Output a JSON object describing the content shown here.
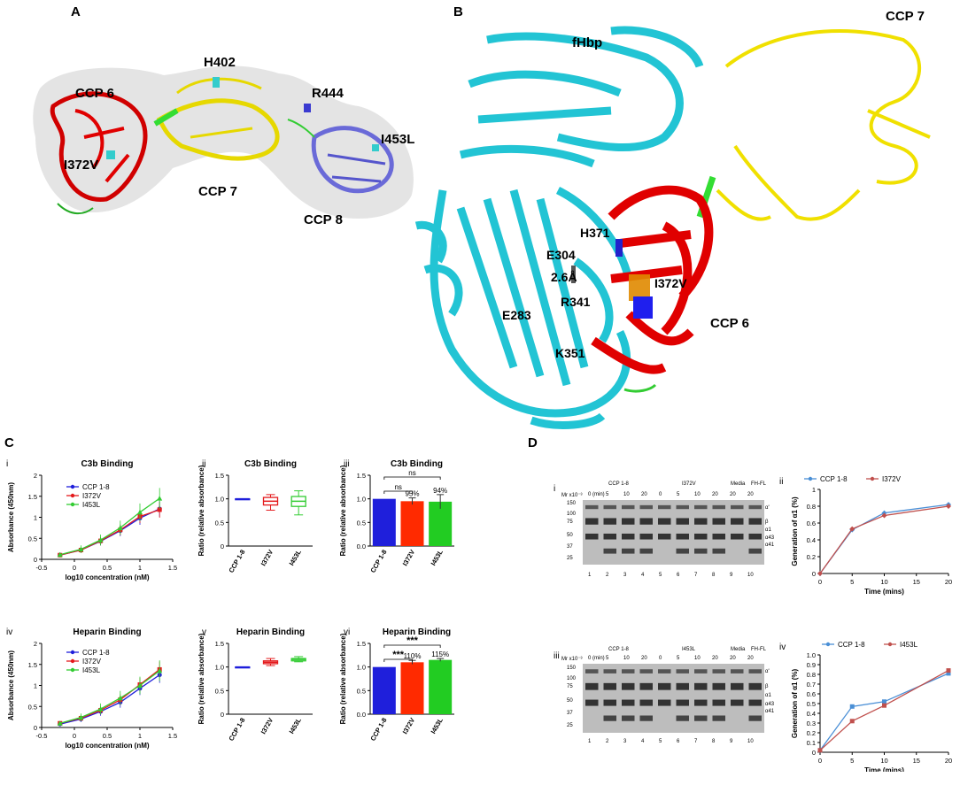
{
  "panels": {
    "A": {
      "letter": "A",
      "labels": {
        "ccp6": "CCP 6",
        "ccp7": "CCP 7",
        "ccp8": "CCP 8",
        "h402": "H402",
        "r444": "R444",
        "i453l": "I453L",
        "i372v": "I372V"
      }
    },
    "B": {
      "letter": "B",
      "labels": {
        "fhbp": "fHbp",
        "ccp7": "CCP 7",
        "ccp6": "CCP 6",
        "h371": "H371",
        "e304": "E304",
        "dist": "2.6Å",
        "i372v": "I372V",
        "r341": "R341",
        "e283": "E283",
        "k351": "K351"
      }
    },
    "C": {
      "letter": "C"
    },
    "D": {
      "letter": "D"
    }
  },
  "chart_data": [
    {
      "id": "C-i",
      "roman": "i",
      "type": "line",
      "title": "C3b Binding",
      "xlabel": "log10 concentration (nM)",
      "ylabel": "Absorbance (450nm)",
      "xlim": [
        -0.5,
        1.5
      ],
      "ylim": [
        0,
        2
      ],
      "xticks": [
        "-0.5",
        "0",
        "0.5",
        "1",
        "1.5"
      ],
      "yticks": [
        "0",
        "0.5",
        "1",
        "1.5",
        "2"
      ],
      "legend": [
        "CCP 1-8",
        "I372V",
        "I453L"
      ],
      "x": [
        -0.22,
        0.1,
        0.4,
        0.7,
        1.0,
        1.3
      ],
      "series": [
        {
          "name": "CCP 1-8",
          "color": "#1f1fdb",
          "values": [
            0.1,
            0.22,
            0.43,
            0.68,
            0.98,
            1.2
          ]
        },
        {
          "name": "I372V",
          "color": "#e41a1c",
          "values": [
            0.1,
            0.22,
            0.44,
            0.7,
            1.02,
            1.18
          ]
        },
        {
          "name": "I453L",
          "color": "#33cc33",
          "values": [
            0.11,
            0.24,
            0.46,
            0.75,
            1.12,
            1.45
          ]
        }
      ]
    },
    {
      "id": "C-ii",
      "roman": "ii",
      "type": "box",
      "title": "C3b Binding",
      "ylabel": "Ratio (relative absorbance)",
      "ylim": [
        0,
        1.5
      ],
      "yticks": [
        "0",
        "0.5",
        "1.0",
        "1.5"
      ],
      "categories": [
        "CCP 1-8",
        "I372V",
        "I453L"
      ],
      "boxes": [
        {
          "min": 1,
          "q1": 1,
          "med": 1,
          "q3": 1,
          "max": 1,
          "color": "#1f1fdb"
        },
        {
          "min": 0.76,
          "q1": 0.87,
          "med": 0.95,
          "q3": 1.03,
          "max": 1.09,
          "color": "#e41a1c"
        },
        {
          "min": 0.66,
          "q1": 0.84,
          "med": 0.95,
          "q3": 1.05,
          "max": 1.17,
          "color": "#33cc33"
        }
      ]
    },
    {
      "id": "C-iii",
      "roman": "iii",
      "type": "bar",
      "title": "C3b Binding",
      "ylabel": "Ratio (relative absorbance)",
      "ylim": [
        0,
        1.5
      ],
      "yticks": [
        "0.0",
        "0.5",
        "1.0",
        "1.5"
      ],
      "categories": [
        "CCP 1-8",
        "I372V",
        "I453L"
      ],
      "values": [
        1.0,
        0.95,
        0.94
      ],
      "errors": [
        0,
        0.07,
        0.15
      ],
      "colors": [
        "#1f1fdb",
        "#ff2a00",
        "#22cc22"
      ],
      "annotations": [
        "",
        "95%",
        "94%"
      ],
      "sig": [
        "ns",
        "ns"
      ]
    },
    {
      "id": "C-iv",
      "roman": "iv",
      "type": "line",
      "title": "Heparin Binding",
      "xlabel": "log10 concentration (nM)",
      "ylabel": "Absorbance (450nm)",
      "xlim": [
        -0.5,
        1.5
      ],
      "ylim": [
        0,
        2
      ],
      "xticks": [
        "-0.5",
        "0",
        "0.5",
        "1",
        "1.5"
      ],
      "yticks": [
        "0",
        "0.5",
        "1",
        "1.5",
        "2"
      ],
      "legend": [
        "CCP 1-8",
        "I372V",
        "I453L"
      ],
      "x": [
        -0.22,
        0.1,
        0.4,
        0.7,
        1.0,
        1.3
      ],
      "series": [
        {
          "name": "CCP 1-8",
          "color": "#1f1fdb",
          "values": [
            0.08,
            0.2,
            0.38,
            0.6,
            0.93,
            1.25
          ]
        },
        {
          "name": "I372V",
          "color": "#e41a1c",
          "values": [
            0.1,
            0.22,
            0.41,
            0.66,
            1.02,
            1.38
          ]
        },
        {
          "name": "I453L",
          "color": "#33cc33",
          "values": [
            0.1,
            0.24,
            0.44,
            0.7,
            1.0,
            1.35
          ]
        }
      ]
    },
    {
      "id": "C-v",
      "roman": "v",
      "type": "box",
      "title": "Heparin Binding",
      "ylabel": "Ratio (relative absorbance)",
      "ylim": [
        0,
        1.5
      ],
      "yticks": [
        "0",
        "0.5",
        "1.0",
        "1.5"
      ],
      "categories": [
        "CCP 1-8",
        "I372V",
        "I453L"
      ],
      "boxes": [
        {
          "min": 1,
          "q1": 1,
          "med": 1,
          "q3": 1,
          "max": 1,
          "color": "#1f1fdb"
        },
        {
          "min": 1.03,
          "q1": 1.07,
          "med": 1.1,
          "q3": 1.13,
          "max": 1.18,
          "color": "#e41a1c"
        },
        {
          "min": 1.11,
          "q1": 1.13,
          "med": 1.16,
          "q3": 1.18,
          "max": 1.22,
          "color": "#33cc33"
        }
      ]
    },
    {
      "id": "C-vi",
      "roman": "vi",
      "type": "bar",
      "title": "Heparin Binding",
      "ylabel": "Ratio (relative absorbance)",
      "ylim": [
        0,
        1.5
      ],
      "yticks": [
        "0.0",
        "0.5",
        "1.0",
        "1.5"
      ],
      "categories": [
        "CCP 1-8",
        "I372V",
        "I453L"
      ],
      "values": [
        1.0,
        1.1,
        1.15
      ],
      "errors": [
        0,
        0.04,
        0.03
      ],
      "colors": [
        "#1f1fdb",
        "#ff2a00",
        "#22cc22"
      ],
      "annotations": [
        "",
        "110%",
        "115%"
      ],
      "sig": [
        "***",
        "***"
      ]
    },
    {
      "id": "D-ii",
      "roman": "ii",
      "type": "line",
      "title": "",
      "xlabel": "Time (mins)",
      "ylabel": "Generation of α1 (%)",
      "xlim": [
        0,
        20
      ],
      "ylim": [
        0,
        1
      ],
      "xticks": [
        "0",
        "5",
        "10",
        "15",
        "20"
      ],
      "yticks": [
        "0",
        "0.2",
        "0.4",
        "0.6",
        "0.8",
        "1"
      ],
      "legend": [
        "CCP 1-8",
        "I372V"
      ],
      "x": [
        0,
        5,
        10,
        20
      ],
      "series": [
        {
          "name": "CCP 1-8",
          "color": "#4a8fd6",
          "values": [
            0,
            0.52,
            0.72,
            0.82
          ]
        },
        {
          "name": "I372V",
          "color": "#c0504d",
          "values": [
            0,
            0.53,
            0.69,
            0.8
          ]
        }
      ]
    },
    {
      "id": "D-iv",
      "roman": "iv",
      "type": "line",
      "title": "",
      "xlabel": "Time (mins)",
      "ylabel": "Generation of α1 (%)",
      "xlim": [
        0,
        20
      ],
      "ylim": [
        0,
        1
      ],
      "xticks": [
        "0",
        "5",
        "10",
        "15",
        "20"
      ],
      "yticks": [
        "0",
        "0.1",
        "0.2",
        "0.3",
        "0.4",
        "0.5",
        "0.6",
        "0.7",
        "0.8",
        "0.9",
        "1.0"
      ],
      "legend": [
        "CCP 1-8",
        "I453L"
      ],
      "x": [
        0,
        5,
        10,
        20
      ],
      "series": [
        {
          "name": "CCP 1-8",
          "color": "#4a8fd6",
          "values": [
            0.02,
            0.47,
            0.52,
            0.81
          ]
        },
        {
          "name": "I453L",
          "color": "#c0504d",
          "values": [
            0.02,
            0.32,
            0.48,
            0.84
          ]
        }
      ]
    }
  ],
  "gels": {
    "i": {
      "roman": "i",
      "mw_label": "Mr x10⁻³",
      "mw": [
        "150",
        "100",
        "75",
        "50",
        "37",
        "25"
      ],
      "groups": [
        "CCP 1-8",
        "I372V",
        "Media",
        "FH-FL"
      ],
      "times": [
        "0 (min)",
        "5",
        "10",
        "20",
        "0",
        "5",
        "10",
        "20",
        "20",
        "20"
      ],
      "lanes": [
        "1",
        "2",
        "3",
        "4",
        "5",
        "6",
        "7",
        "8",
        "9",
        "10"
      ],
      "bands": [
        "α'",
        "β",
        "α1",
        "α43",
        "α41"
      ]
    },
    "iii": {
      "roman": "iii",
      "mw_label": "Mr x10⁻³",
      "mw": [
        "150",
        "100",
        "75",
        "50",
        "37",
        "25"
      ],
      "groups": [
        "CCP 1-8",
        "I453L",
        "Media",
        "FH-FL"
      ],
      "times": [
        "0 (min)",
        "5",
        "10",
        "20",
        "0",
        "5",
        "10",
        "20",
        "20",
        "20"
      ],
      "lanes": [
        "1",
        "2",
        "3",
        "4",
        "5",
        "6",
        "7",
        "8",
        "9",
        "10"
      ],
      "bands": [
        "α'",
        "β",
        "α1",
        "α43",
        "α41"
      ]
    }
  }
}
